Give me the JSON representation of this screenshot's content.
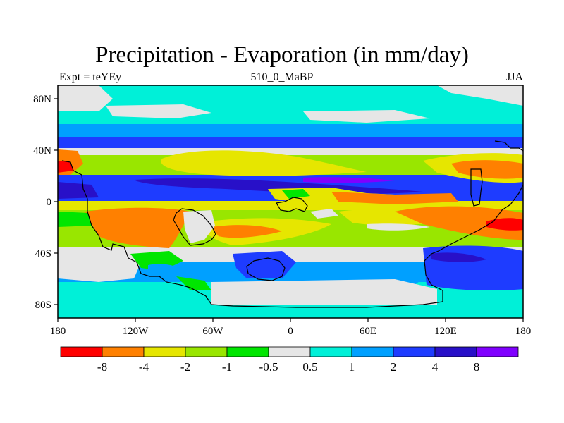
{
  "header": {
    "title": "Precipitation - Evaporation (in mm/day)",
    "left_label": "Expt = teYEy",
    "center_label": "510_0_MaBP",
    "right_label": "JJA"
  },
  "chart_data": {
    "type": "heatmap",
    "title": "Precipitation - Evaporation (in mm/day)",
    "x_ticks": [
      "180",
      "120W",
      "60W",
      "0",
      "60E",
      "120E",
      "180"
    ],
    "y_ticks": [
      "80N",
      "40N",
      "0",
      "40S",
      "80S"
    ],
    "xlim": [
      -180,
      180
    ],
    "ylim": [
      -90,
      90
    ],
    "grid": false,
    "legend_placement": "bottom",
    "colorbar": {
      "colors": [
        "#ff0000",
        "#ff8000",
        "#e6e600",
        "#99e600",
        "#00e600",
        "#e6e6e6",
        "#00f0d8",
        "#00a0ff",
        "#1e3cff",
        "#2810c8",
        "#8000ff"
      ],
      "labels": [
        "-8",
        "-4",
        "-2",
        "-1",
        "-0.5",
        "0.5",
        "1",
        "2",
        "4",
        "8"
      ]
    }
  }
}
